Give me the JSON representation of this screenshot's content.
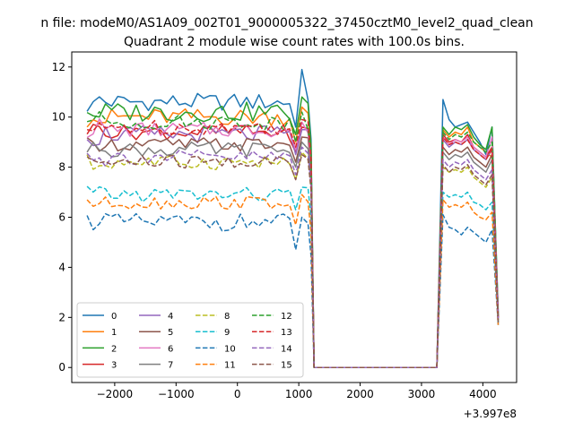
{
  "chart_data": {
    "type": "line",
    "suptitle": "n file: modeM0/AS1A09_002T01_9000005322_37450cztM0_level2_quad_clean",
    "title": "Quadrant 2 module wise count rates with 100.0s bins.",
    "xlabel": "",
    "ylabel": "",
    "offset_text": "+3.997e8",
    "xlim": [
      -2700,
      4550
    ],
    "ylim": [
      -0.6,
      12.6
    ],
    "x_ticks": [
      -2000,
      -1000,
      0,
      1000,
      2000,
      3000,
      4000
    ],
    "x_tick_labels": [
      "−2000",
      "−1000",
      "0",
      "1000",
      "2000",
      "3000",
      "4000"
    ],
    "y_ticks": [
      0,
      2,
      4,
      6,
      8,
      10,
      12
    ],
    "y_tick_labels": [
      "0",
      "2",
      "4",
      "6",
      "8",
      "10",
      "12"
    ],
    "grid": false,
    "legend_position": "lower-left",
    "legend_columns": 4,
    "x_segments": {
      "seg1_start": -2450,
      "step": 100,
      "seg1_len": 37,
      "gap_x": [
        1250,
        3250
      ],
      "seg2": [
        3350,
        3450,
        3550,
        3650,
        3750,
        3850,
        3950,
        4050,
        4150,
        4250
      ]
    },
    "series": [
      {
        "name": "0",
        "color": "#1f77b4",
        "dash": "solid",
        "base": 10.6,
        "amp": 0.35,
        "peak": 11.9,
        "drop": 9.6,
        "seg2": [
          10.7,
          9.9,
          9.6,
          9.7,
          9.8,
          9.4,
          9.0,
          8.5,
          9.6,
          2.2
        ]
      },
      {
        "name": "1",
        "color": "#ff7f0e",
        "dash": "solid",
        "base": 10.0,
        "amp": 0.35,
        "peak": 10.4,
        "drop": 9.0,
        "seg2": [
          9.5,
          9.2,
          9.4,
          9.3,
          9.6,
          9.0,
          8.8,
          8.6,
          8.4,
          2.0
        ]
      },
      {
        "name": "2",
        "color": "#2ca02c",
        "dash": "solid",
        "base": 10.2,
        "amp": 0.4,
        "peak": 10.8,
        "drop": 9.3,
        "seg2": [
          9.6,
          9.3,
          9.6,
          9.5,
          9.7,
          9.2,
          8.9,
          8.7,
          9.6,
          2.1
        ]
      },
      {
        "name": "3",
        "color": "#d62728",
        "dash": "solid",
        "base": 9.4,
        "amp": 0.3,
        "peak": 9.6,
        "drop": 8.6,
        "seg2": [
          9.3,
          9.0,
          9.1,
          9.0,
          9.3,
          8.8,
          8.6,
          8.4,
          8.8,
          2.0
        ]
      },
      {
        "name": "4",
        "color": "#9467bd",
        "dash": "solid",
        "base": 9.3,
        "amp": 0.35,
        "peak": 9.5,
        "drop": 8.5,
        "seg2": [
          9.1,
          8.8,
          9.0,
          8.9,
          9.1,
          8.7,
          8.5,
          8.3,
          8.7,
          2.0
        ]
      },
      {
        "name": "5",
        "color": "#8c564b",
        "dash": "solid",
        "base": 8.9,
        "amp": 0.3,
        "peak": 9.2,
        "drop": 8.2,
        "seg2": [
          8.8,
          8.5,
          8.7,
          8.6,
          8.8,
          8.4,
          8.2,
          8.0,
          8.5,
          1.9
        ]
      },
      {
        "name": "6",
        "color": "#e377c2",
        "dash": "solid",
        "base": 9.5,
        "amp": 0.3,
        "peak": 9.8,
        "drop": 8.7,
        "seg2": [
          9.2,
          8.9,
          9.1,
          9.0,
          9.2,
          8.8,
          8.6,
          8.4,
          9.2,
          2.0
        ]
      },
      {
        "name": "7",
        "color": "#7f7f7f",
        "dash": "solid",
        "base": 8.7,
        "amp": 0.3,
        "peak": 9.0,
        "drop": 8.0,
        "seg2": [
          8.6,
          8.3,
          8.5,
          8.4,
          8.6,
          8.2,
          8.0,
          7.8,
          8.3,
          1.9
        ]
      },
      {
        "name": "8",
        "color": "#bcbd22",
        "dash": "dashed",
        "base": 8.2,
        "amp": 0.3,
        "peak": 8.6,
        "drop": 7.5,
        "seg2": [
          8.0,
          7.8,
          7.9,
          7.8,
          8.0,
          7.6,
          7.4,
          7.2,
          7.6,
          1.8
        ]
      },
      {
        "name": "9",
        "color": "#17becf",
        "dash": "dashed",
        "base": 6.9,
        "amp": 0.3,
        "peak": 7.2,
        "drop": 6.3,
        "seg2": [
          7.0,
          6.8,
          6.9,
          6.8,
          7.0,
          6.6,
          6.5,
          6.3,
          6.6,
          1.8
        ]
      },
      {
        "name": "10",
        "color": "#1f77b4",
        "dash": "dashed",
        "base": 5.8,
        "amp": 0.35,
        "peak": 6.0,
        "drop": 4.7,
        "seg2": [
          6.1,
          5.6,
          5.5,
          5.3,
          5.6,
          5.4,
          5.2,
          5.0,
          5.5,
          1.7
        ]
      },
      {
        "name": "11",
        "color": "#ff7f0e",
        "dash": "dashed",
        "base": 6.6,
        "amp": 0.3,
        "peak": 6.9,
        "drop": 5.7,
        "seg2": [
          6.7,
          6.4,
          6.5,
          6.4,
          6.6,
          6.2,
          6.0,
          5.9,
          6.2,
          1.7
        ]
      },
      {
        "name": "12",
        "color": "#2ca02c",
        "dash": "dashed",
        "base": 9.8,
        "amp": 0.3,
        "peak": 10.2,
        "drop": 9.0,
        "seg2": [
          9.4,
          9.1,
          9.3,
          9.2,
          9.4,
          9.0,
          8.8,
          8.6,
          9.0,
          2.0
        ]
      },
      {
        "name": "13",
        "color": "#d62728",
        "dash": "dashed",
        "base": 9.6,
        "amp": 0.3,
        "peak": 9.9,
        "drop": 8.8,
        "seg2": [
          9.2,
          8.9,
          9.0,
          8.9,
          9.1,
          8.7,
          8.5,
          8.3,
          8.7,
          2.0
        ]
      },
      {
        "name": "14",
        "color": "#9467bd",
        "dash": "dashed",
        "base": 8.4,
        "amp": 0.3,
        "peak": 8.8,
        "drop": 7.7,
        "seg2": [
          8.3,
          8.0,
          8.2,
          8.1,
          8.3,
          7.9,
          7.7,
          7.5,
          7.9,
          1.9
        ]
      },
      {
        "name": "15",
        "color": "#8c564b",
        "dash": "dashed",
        "base": 8.2,
        "amp": 0.3,
        "peak": 8.5,
        "drop": 7.5,
        "seg2": [
          8.1,
          7.8,
          8.0,
          7.9,
          8.1,
          7.7,
          7.5,
          7.3,
          7.7,
          1.8
        ]
      }
    ]
  }
}
